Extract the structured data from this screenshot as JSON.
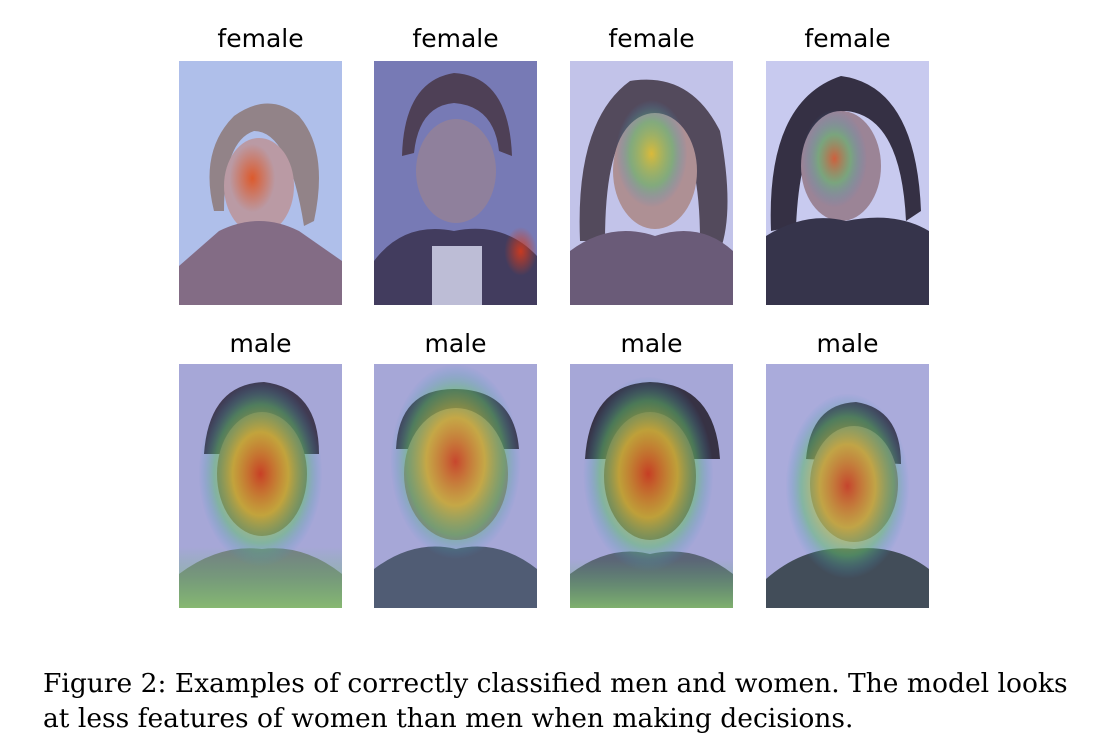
{
  "figure": {
    "panels": [
      {
        "label": "female",
        "row": "top"
      },
      {
        "label": "female",
        "row": "top"
      },
      {
        "label": "female",
        "row": "top"
      },
      {
        "label": "female",
        "row": "top"
      },
      {
        "label": "male",
        "row": "bottom"
      },
      {
        "label": "male",
        "row": "bottom"
      },
      {
        "label": "male",
        "row": "bottom"
      },
      {
        "label": "male",
        "row": "bottom"
      }
    ],
    "caption": "Figure 2: Examples of correctly classified men and women. The model looks at less features of women than men when making decisions.",
    "colors": {
      "overlay_base": "#9a9cd6",
      "heat_hot": "#d63a1a",
      "heat_warm": "#e3c12a",
      "heat_mid": "#5fbf6a",
      "heat_cool": "#3a8fd1"
    }
  }
}
